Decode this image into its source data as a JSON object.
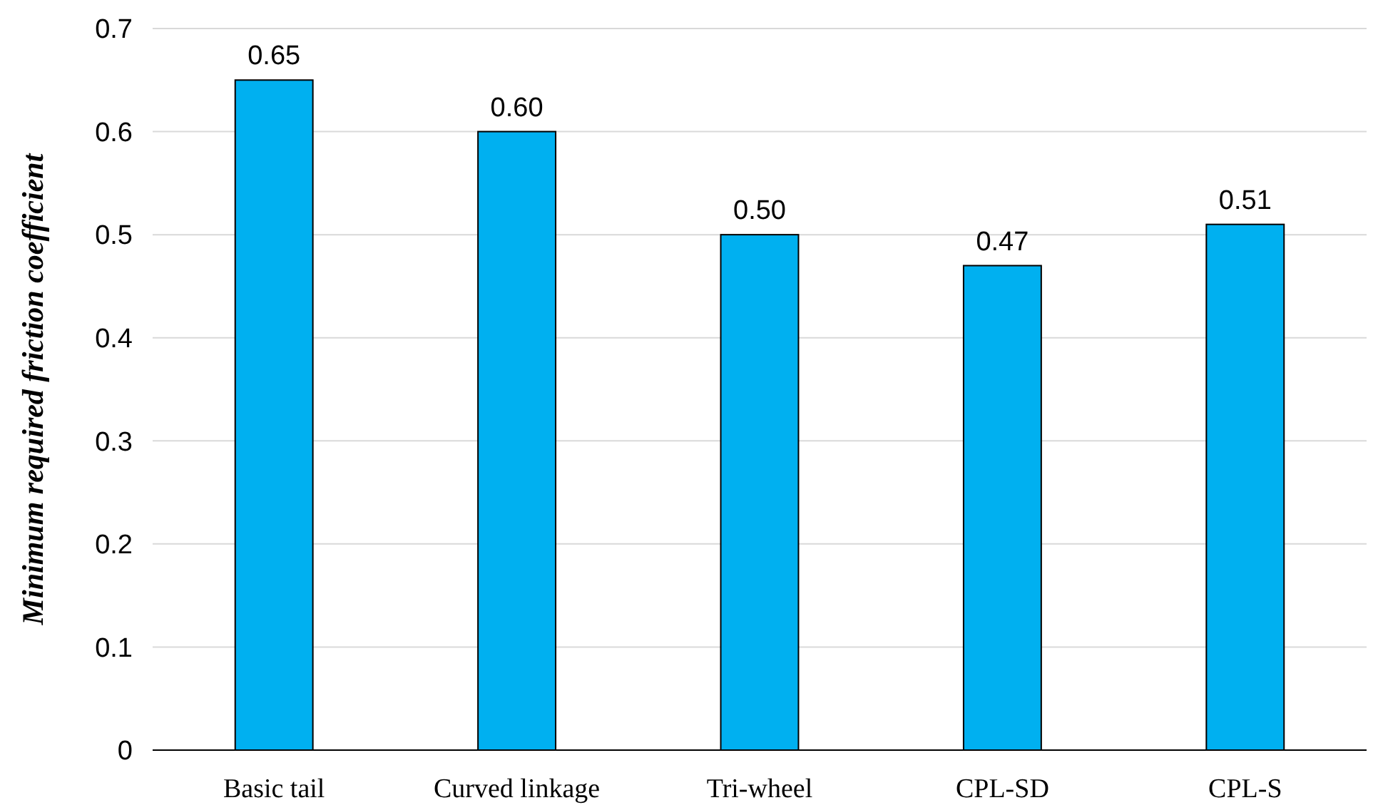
{
  "chart_data": {
    "type": "bar",
    "ylabel": "Minimum required friction coefficient",
    "categories": [
      "Basic tail",
      "Curved linkage",
      "Tri-wheel",
      "CPL-SD",
      "CPL-S"
    ],
    "values": [
      0.65,
      0.6,
      0.5,
      0.47,
      0.51
    ],
    "value_labels": [
      "0.65",
      "0.60",
      "0.50",
      "0.47",
      "0.51"
    ],
    "color": "#00b0f0",
    "ylim": [
      0,
      0.7
    ],
    "yticks": [
      0,
      0.1,
      0.2,
      0.3,
      0.4,
      0.5,
      0.6,
      0.7
    ],
    "grid": "y"
  }
}
